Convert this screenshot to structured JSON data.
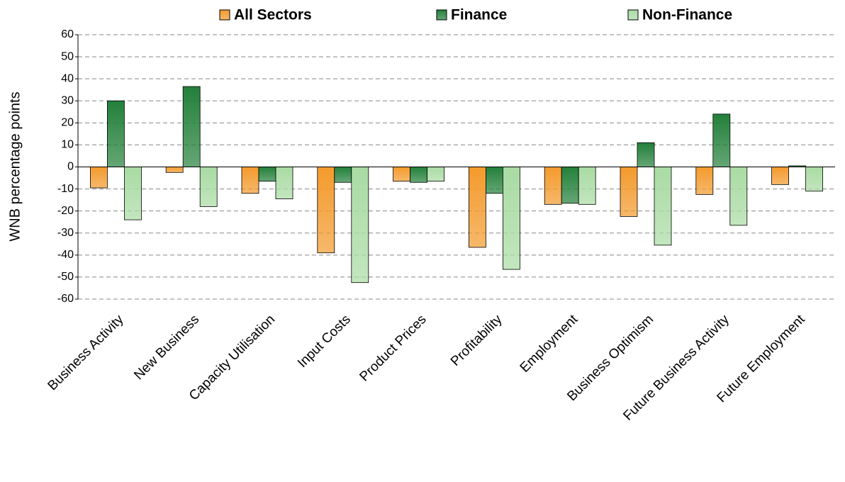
{
  "chart_data": {
    "type": "bar",
    "y_label": "WNB percentage points",
    "categories": [
      "Business Activity",
      "New Business",
      "Capacity Utilisation",
      "Input Costs",
      "Product Prices",
      "Profitability",
      "Employment",
      "Business Optimism",
      "Future Business Activity",
      "Future Employment"
    ],
    "series": [
      {
        "name": "All Sectors",
        "color": "#f39a2c",
        "values": [
          -9.5,
          -2.5,
          -12,
          -39,
          -6.5,
          -36.5,
          -17,
          -22.5,
          -12.5,
          -8
        ]
      },
      {
        "name": "Finance",
        "color": "#23803a",
        "values": [
          30,
          36.5,
          -6.5,
          -7,
          -7,
          -12,
          -16.5,
          11,
          24,
          0.5
        ]
      },
      {
        "name": "Non-Finance",
        "color": "#a9dba3",
        "values": [
          -24,
          -18,
          -14.5,
          -52.5,
          -6.5,
          -46.5,
          -17,
          -35.5,
          -26.5,
          -11
        ]
      }
    ],
    "ylim": [
      -60,
      60
    ],
    "yticks": [
      -60,
      -50,
      -40,
      -30,
      -20,
      -10,
      0,
      10,
      20,
      30,
      40,
      50,
      60
    ],
    "grid": true
  }
}
